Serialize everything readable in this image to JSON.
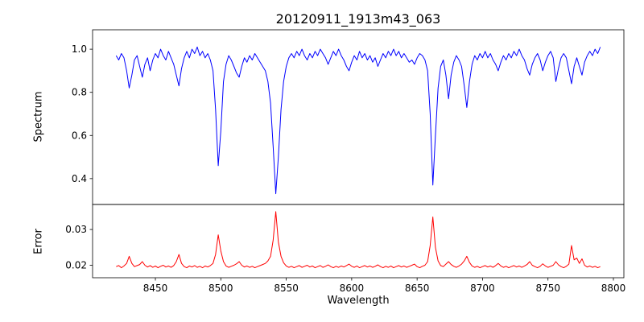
{
  "chart_data": {
    "type": "line",
    "title": "20120911_1913m43_063",
    "xlabel": "Wavelength",
    "x_start": 8420,
    "x_step": 2,
    "xlim": [
      8402,
      8808
    ],
    "x_ticks": [
      8450,
      8500,
      8550,
      8600,
      8650,
      8700,
      8750,
      8800
    ],
    "x_tick_labels": [
      "8450",
      "8500",
      "8550",
      "8600",
      "8650",
      "8700",
      "8750",
      "8800"
    ],
    "grid": false,
    "legend": "none",
    "subplots": [
      {
        "name": "spectrum",
        "ylabel": "Spectrum",
        "ylim": [
          0.28,
          1.09
        ],
        "y_ticks": [
          0.4,
          0.6,
          0.8,
          1.0
        ],
        "y_tick_labels": [
          "0.4",
          "0.6",
          "0.8",
          "1.0"
        ],
        "color": "#0000ff",
        "notable_features": "Ca II triplet absorption lines near 8498, 8542, 8662 with minima 0.46, 0.33, 0.37",
        "values": [
          0.97,
          0.95,
          0.98,
          0.96,
          0.9,
          0.82,
          0.88,
          0.95,
          0.97,
          0.92,
          0.87,
          0.93,
          0.96,
          0.9,
          0.95,
          0.98,
          0.96,
          1.0,
          0.97,
          0.95,
          0.99,
          0.96,
          0.93,
          0.88,
          0.83,
          0.91,
          0.96,
          0.99,
          0.96,
          1.0,
          0.98,
          1.01,
          0.97,
          0.99,
          0.96,
          0.98,
          0.95,
          0.9,
          0.72,
          0.46,
          0.62,
          0.85,
          0.93,
          0.97,
          0.95,
          0.92,
          0.89,
          0.87,
          0.92,
          0.96,
          0.94,
          0.97,
          0.95,
          0.98,
          0.96,
          0.94,
          0.92,
          0.9,
          0.85,
          0.75,
          0.55,
          0.33,
          0.5,
          0.72,
          0.85,
          0.92,
          0.96,
          0.98,
          0.96,
          0.99,
          0.97,
          1.0,
          0.97,
          0.95,
          0.98,
          0.96,
          0.99,
          0.97,
          1.0,
          0.98,
          0.96,
          0.93,
          0.96,
          0.99,
          0.97,
          1.0,
          0.97,
          0.95,
          0.92,
          0.9,
          0.94,
          0.97,
          0.95,
          0.99,
          0.96,
          0.98,
          0.95,
          0.97,
          0.94,
          0.96,
          0.92,
          0.95,
          0.98,
          0.96,
          0.99,
          0.97,
          1.0,
          0.97,
          0.99,
          0.96,
          0.98,
          0.96,
          0.94,
          0.95,
          0.93,
          0.96,
          0.98,
          0.97,
          0.95,
          0.9,
          0.7,
          0.37,
          0.6,
          0.82,
          0.92,
          0.95,
          0.88,
          0.77,
          0.88,
          0.94,
          0.97,
          0.95,
          0.92,
          0.83,
          0.73,
          0.85,
          0.93,
          0.97,
          0.95,
          0.98,
          0.96,
          0.99,
          0.96,
          0.98,
          0.95,
          0.93,
          0.9,
          0.94,
          0.97,
          0.95,
          0.98,
          0.96,
          0.99,
          0.97,
          1.0,
          0.97,
          0.95,
          0.91,
          0.88,
          0.93,
          0.96,
          0.98,
          0.95,
          0.9,
          0.94,
          0.97,
          0.99,
          0.96,
          0.85,
          0.91,
          0.96,
          0.98,
          0.96,
          0.9,
          0.84,
          0.92,
          0.96,
          0.92,
          0.88,
          0.94,
          0.97,
          0.99,
          0.97,
          1.0,
          0.98,
          1.01
        ]
      },
      {
        "name": "error",
        "ylabel": "Error",
        "ylim": [
          0.0165,
          0.037
        ],
        "y_ticks": [
          0.02,
          0.03
        ],
        "y_tick_labels": [
          "0.02",
          "0.03"
        ],
        "color": "#ff0000",
        "notable_features": "baseline ~0.0195 with peaks at 8498 (~0.028), 8542 (~0.035), 8662 (~0.033)",
        "values": [
          0.0196,
          0.0199,
          0.0193,
          0.0198,
          0.0205,
          0.0225,
          0.0205,
          0.0196,
          0.0199,
          0.0202,
          0.021,
          0.02,
          0.0195,
          0.0199,
          0.0194,
          0.0198,
          0.0193,
          0.0197,
          0.02,
          0.0195,
          0.0198,
          0.0194,
          0.0199,
          0.021,
          0.023,
          0.0205,
          0.0196,
          0.0193,
          0.0198,
          0.0195,
          0.0199,
          0.0194,
          0.0197,
          0.0193,
          0.0198,
          0.0195,
          0.0199,
          0.0205,
          0.023,
          0.0285,
          0.024,
          0.021,
          0.0198,
          0.0194,
          0.0197,
          0.02,
          0.0204,
          0.021,
          0.02,
          0.0195,
          0.0198,
          0.0194,
          0.0197,
          0.0193,
          0.0196,
          0.0199,
          0.0202,
          0.0205,
          0.0212,
          0.0225,
          0.027,
          0.035,
          0.0265,
          0.0225,
          0.0207,
          0.0198,
          0.0194,
          0.0197,
          0.0193,
          0.0196,
          0.0199,
          0.0194,
          0.0197,
          0.02,
          0.0195,
          0.0198,
          0.0193,
          0.0196,
          0.0199,
          0.0194,
          0.0197,
          0.0201,
          0.0196,
          0.0193,
          0.0197,
          0.0194,
          0.0198,
          0.0195,
          0.0199,
          0.0203,
          0.0197,
          0.0194,
          0.0198,
          0.0193,
          0.0196,
          0.0199,
          0.0195,
          0.0198,
          0.0194,
          0.0197,
          0.0201,
          0.0196,
          0.0193,
          0.0197,
          0.0194,
          0.0198,
          0.0193,
          0.0196,
          0.0199,
          0.0195,
          0.0198,
          0.0194,
          0.0197,
          0.02,
          0.0203,
          0.0196,
          0.0193,
          0.0197,
          0.02,
          0.021,
          0.0255,
          0.0335,
          0.025,
          0.0212,
          0.0199,
          0.0196,
          0.0203,
          0.021,
          0.0202,
          0.0197,
          0.0194,
          0.0198,
          0.0203,
          0.0212,
          0.0225,
          0.0208,
          0.0198,
          0.0194,
          0.0197,
          0.0193,
          0.0196,
          0.0199,
          0.0195,
          0.0198,
          0.0194,
          0.0199,
          0.0205,
          0.0198,
          0.0194,
          0.0197,
          0.0193,
          0.0196,
          0.0199,
          0.0195,
          0.0198,
          0.0194,
          0.0198,
          0.0202,
          0.021,
          0.02,
          0.0196,
          0.0193,
          0.0197,
          0.0204,
          0.0198,
          0.0194,
          0.0197,
          0.02,
          0.021,
          0.0201,
          0.0196,
          0.0193,
          0.0197,
          0.0203,
          0.0255,
          0.0215,
          0.022,
          0.0205,
          0.0218,
          0.02,
          0.0195,
          0.0198,
          0.0194,
          0.0197,
          0.0193,
          0.0196
        ]
      }
    ]
  }
}
